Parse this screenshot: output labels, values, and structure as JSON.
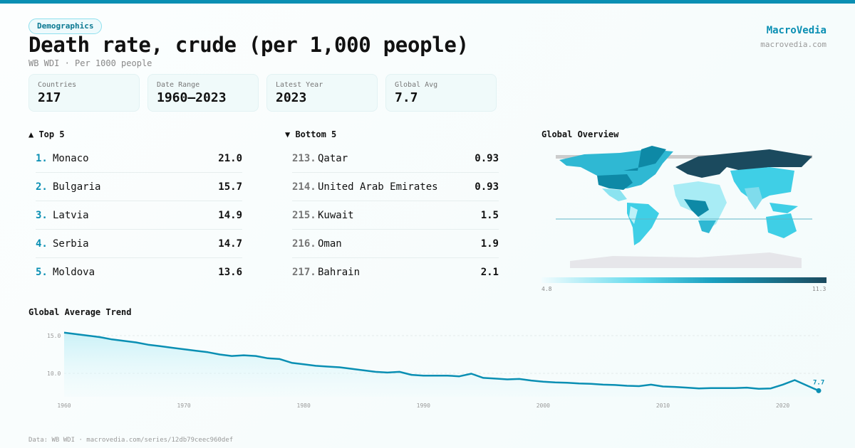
{
  "header": {
    "badge": "Demographics",
    "title": "Death rate, crude (per 1,000 people)",
    "subtitle": "WB WDI · Per 1000 people",
    "brand": "MacroVedia",
    "brand_url": "macrovedia.com"
  },
  "stats": [
    {
      "label": "Countries",
      "value": "217"
    },
    {
      "label": "Date Range",
      "value": "1960–2023"
    },
    {
      "label": "Latest Year",
      "value": "2023"
    },
    {
      "label": "Global Avg",
      "value": "7.7"
    }
  ],
  "top": {
    "title": "▲ Top 5",
    "items": [
      {
        "rank": "1.",
        "name": "Monaco",
        "value": "21.0"
      },
      {
        "rank": "2.",
        "name": "Bulgaria",
        "value": "15.7"
      },
      {
        "rank": "3.",
        "name": "Latvia",
        "value": "14.9"
      },
      {
        "rank": "4.",
        "name": "Serbia",
        "value": "14.7"
      },
      {
        "rank": "5.",
        "name": "Moldova",
        "value": "13.6"
      }
    ]
  },
  "bottom": {
    "title": "▼ Bottom 5",
    "items": [
      {
        "rank": "213.",
        "name": "Qatar",
        "value": "0.93"
      },
      {
        "rank": "214.",
        "name": "United Arab Emirates",
        "value": "0.93"
      },
      {
        "rank": "215.",
        "name": "Kuwait",
        "value": "1.5"
      },
      {
        "rank": "216.",
        "name": "Oman",
        "value": "1.9"
      },
      {
        "rank": "217.",
        "name": "Bahrain",
        "value": "2.1"
      }
    ]
  },
  "map": {
    "title": "Global Overview",
    "legend_min": "4.8",
    "legend_max": "11.3",
    "colors": {
      "low": "#f2fcfe",
      "mid": "#3fcfe6",
      "high": "#1b4a5e"
    }
  },
  "footer": "Data: WB WDI · macrovedia.com/series/12db79ceec960def",
  "chart_data": {
    "type": "area",
    "title": "Global Average Trend",
    "xlabel": "",
    "ylabel": "",
    "x": [
      1960,
      1961,
      1962,
      1963,
      1964,
      1965,
      1966,
      1967,
      1968,
      1969,
      1970,
      1971,
      1972,
      1973,
      1974,
      1975,
      1976,
      1977,
      1978,
      1979,
      1980,
      1981,
      1982,
      1983,
      1984,
      1985,
      1986,
      1987,
      1988,
      1989,
      1990,
      1991,
      1992,
      1993,
      1994,
      1995,
      1996,
      1997,
      1998,
      1999,
      2000,
      2001,
      2002,
      2003,
      2004,
      2005,
      2006,
      2007,
      2008,
      2009,
      2010,
      2011,
      2012,
      2013,
      2014,
      2015,
      2016,
      2017,
      2018,
      2019,
      2020,
      2021,
      2022,
      2023
    ],
    "values": [
      15.4,
      15.2,
      15.0,
      14.8,
      14.5,
      14.3,
      14.1,
      13.8,
      13.6,
      13.4,
      13.2,
      13.0,
      12.8,
      12.5,
      12.3,
      12.4,
      12.3,
      12.0,
      11.9,
      11.4,
      11.2,
      11.0,
      10.9,
      10.8,
      10.6,
      10.4,
      10.2,
      10.1,
      10.2,
      9.8,
      9.7,
      9.7,
      9.7,
      9.6,
      9.95,
      9.4,
      9.3,
      9.2,
      9.25,
      9.05,
      8.9,
      8.8,
      8.75,
      8.65,
      8.6,
      8.5,
      8.45,
      8.35,
      8.3,
      8.5,
      8.25,
      8.2,
      8.1,
      8.0,
      8.05,
      8.05,
      8.05,
      8.1,
      7.95,
      8.0,
      8.5,
      9.1,
      8.4,
      7.7
    ],
    "yticks": [
      "15.0",
      "10.0"
    ],
    "xticks": [
      "1960",
      "1970",
      "1980",
      "1990",
      "2000",
      "2010",
      "2020"
    ],
    "ylim": [
      6.9,
      16
    ],
    "end_label": "7.7",
    "grid": true,
    "color": "#0a8fb3"
  }
}
